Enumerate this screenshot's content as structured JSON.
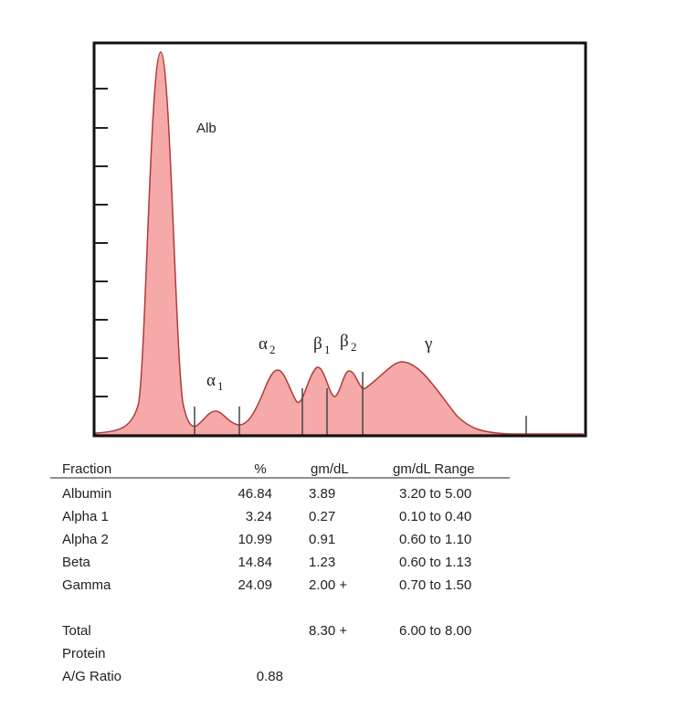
{
  "peaks": [
    {
      "symbol": "Alb"
    },
    {
      "symbol": "α",
      "sub": "1"
    },
    {
      "symbol": "α",
      "sub": "2"
    },
    {
      "symbol": "β",
      "sub": "1"
    },
    {
      "symbol": "β",
      "sub": "2"
    },
    {
      "symbol": "γ"
    }
  ],
  "table": {
    "header": [
      "Fraction",
      "%",
      "gm/dL",
      "gm/dL Range"
    ],
    "rows": [
      [
        "Albumin",
        "46.84",
        "3.89",
        "3.20 to 5.00"
      ],
      [
        "Alpha 1",
        "3.24",
        "0.27",
        "0.10 to 0.40"
      ],
      [
        "Alpha 2",
        "10.99",
        "0.91",
        "0.60 to 1.10"
      ],
      [
        "Beta",
        "14.84",
        "1.23",
        "0.60 to 1.13"
      ],
      [
        "Gamma",
        "24.09",
        "2.00 +",
        "0.70 to 1.50"
      ]
    ],
    "total": {
      "label_lines": [
        "Total",
        "Protein"
      ],
      "gmdl": "8.30 +",
      "range": "6.00 to 8.00"
    },
    "ag_ratio": {
      "label": "A/G Ratio",
      "percent": "0.88"
    }
  }
}
